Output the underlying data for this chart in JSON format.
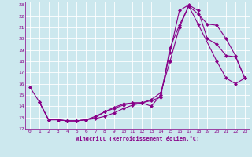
{
  "xlabel": "Windchill (Refroidissement éolien,°C)",
  "bg_color": "#cce8ee",
  "grid_color": "#ffffff",
  "line_color": "#880088",
  "xlim": [
    -0.5,
    23.5
  ],
  "ylim": [
    12,
    23.3
  ],
  "xticks": [
    0,
    1,
    2,
    3,
    4,
    5,
    6,
    7,
    8,
    9,
    10,
    11,
    12,
    13,
    14,
    15,
    16,
    17,
    18,
    19,
    20,
    21,
    22,
    23
  ],
  "yticks": [
    12,
    13,
    14,
    15,
    16,
    17,
    18,
    19,
    20,
    21,
    22,
    23
  ],
  "curve1_x": [
    0,
    1,
    2,
    3,
    4,
    5,
    6,
    7,
    8,
    9,
    10,
    11,
    12,
    13,
    14,
    15,
    16,
    17,
    18,
    19,
    20,
    21,
    22,
    23
  ],
  "curve1_y": [
    15.7,
    14.4,
    12.8,
    12.8,
    12.7,
    12.7,
    12.8,
    12.9,
    13.1,
    13.4,
    13.8,
    14.1,
    14.3,
    14.0,
    15.0,
    18.8,
    22.5,
    23.0,
    22.5,
    20.0,
    19.5,
    18.5,
    18.4,
    16.5
  ],
  "curve2_x": [
    1,
    2,
    3,
    4,
    5,
    6,
    7,
    8,
    9,
    10,
    11,
    12,
    13,
    14,
    15,
    16,
    17,
    18,
    19,
    20,
    21,
    22,
    23
  ],
  "curve2_y": [
    14.4,
    12.8,
    12.8,
    12.7,
    12.7,
    12.8,
    13.0,
    13.5,
    13.8,
    14.1,
    14.3,
    14.3,
    14.5,
    14.8,
    19.2,
    21.2,
    22.9,
    22.2,
    21.3,
    21.2,
    20.0,
    18.5,
    16.5
  ],
  "curve3_x": [
    1,
    2,
    3,
    4,
    5,
    6,
    7,
    8,
    9,
    10,
    11,
    12,
    13,
    14,
    15,
    16,
    17,
    18,
    20,
    21,
    22,
    23
  ],
  "curve3_y": [
    14.4,
    12.8,
    12.8,
    12.7,
    12.7,
    12.8,
    13.1,
    13.5,
    13.9,
    14.2,
    14.3,
    14.3,
    14.6,
    15.2,
    18.0,
    21.0,
    22.9,
    21.3,
    18.0,
    16.5,
    16.0,
    16.5
  ]
}
